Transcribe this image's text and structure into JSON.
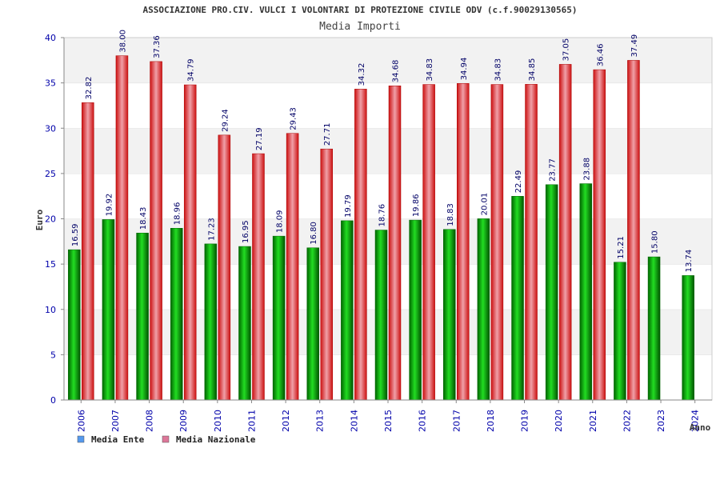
{
  "chart_data": {
    "type": "bar",
    "title": "ASSOCIAZIONE PRO.CIV. VULCI I VOLONTARI DI PROTEZIONE CIVILE ODV (c.f.90029130565)",
    "subtitle": "Media Importi",
    "xlabel": "Anno",
    "ylabel": "Euro",
    "ylim": [
      0,
      40
    ],
    "yticks": [
      0,
      5,
      10,
      15,
      20,
      25,
      30,
      35,
      40
    ],
    "grid": true,
    "legend_position": "bottom-left",
    "categories": [
      "2006",
      "2007",
      "2008",
      "2009",
      "2010",
      "2011",
      "2012",
      "2013",
      "2014",
      "2015",
      "2016",
      "2017",
      "2018",
      "2019",
      "2020",
      "2021",
      "2022",
      "2023",
      "2024"
    ],
    "series": [
      {
        "name": "Media Ente",
        "color": "#00aa00",
        "legend_color": "#5599ee",
        "values": [
          16.59,
          19.92,
          18.43,
          18.96,
          17.23,
          16.95,
          18.09,
          16.8,
          19.79,
          18.76,
          19.86,
          18.83,
          20.01,
          22.49,
          23.77,
          23.88,
          15.21,
          15.8,
          13.74
        ],
        "labels": [
          "16.59",
          "19.92",
          "18.43",
          "18.96",
          "17.23",
          "16.95",
          "18.09",
          "16.80",
          "19.79",
          "18.76",
          "19.86",
          "18.83",
          "20.01",
          "22.49",
          "23.77",
          "23.88",
          "15.21",
          "15.80",
          "13.74"
        ]
      },
      {
        "name": "Media Nazionale",
        "color": "#ee2222",
        "legend_color": "#dd7799",
        "values": [
          32.82,
          38.0,
          37.36,
          34.79,
          29.24,
          27.19,
          29.43,
          27.71,
          34.32,
          34.68,
          34.83,
          34.94,
          34.83,
          34.85,
          37.05,
          36.46,
          37.49,
          null,
          null
        ],
        "labels": [
          "32.82",
          "38.00",
          "37.36",
          "34.79",
          "29.24",
          "27.19",
          "29.43",
          "27.71",
          "34.32",
          "34.68",
          "34.83",
          "34.94",
          "34.83",
          "34.85",
          "37.05",
          "36.46",
          "37.49",
          "",
          ""
        ]
      }
    ]
  }
}
